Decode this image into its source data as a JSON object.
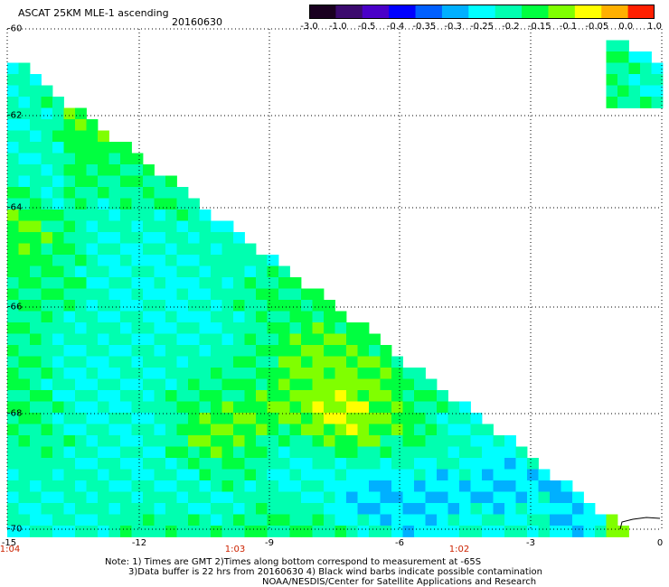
{
  "header": {
    "title": "ASCAT 25KM MLE-1 ascending",
    "date": "20160630"
  },
  "colorbar": {
    "labels": [
      "-3.0",
      "-1.0",
      "-0.5",
      "-0.4",
      "-0.35",
      "-0.3",
      "-0.25",
      "-0.2",
      "-0.15",
      "-0.1",
      "-0.05",
      "0.0",
      "1.0"
    ]
  },
  "axes": {
    "lat_labels": [
      "-60",
      "-62",
      "-64",
      "-66",
      "-68",
      "-70"
    ],
    "lon_labels": [
      "-15",
      "-12",
      "-9",
      "-6",
      "-3",
      "0"
    ],
    "time_labels": [
      "1:04",
      "1:03",
      "1:02"
    ]
  },
  "notes": {
    "line1": "Note: 1) Times are GMT 2)Times along bottom correspond to measurement at -65S",
    "line2": "3)Data buffer is 22 hrs from 20160630 4) Black wind barbs indicate possible contamination",
    "line3": "NOAA/NESDIS/Center for Satellite Applications and Research"
  },
  "colors": {
    "palette": [
      "#1a0020",
      "#3b0a6e",
      "#4a00c8",
      "#0000ff",
      "#0060ff",
      "#00b0ff",
      "#00ffff",
      "#00ffb0",
      "#00ff40",
      "#80ff00",
      "#ffff00",
      "#ffb000",
      "#ff2000"
    ],
    "grid": "#000000",
    "coast": "#000000"
  }
}
